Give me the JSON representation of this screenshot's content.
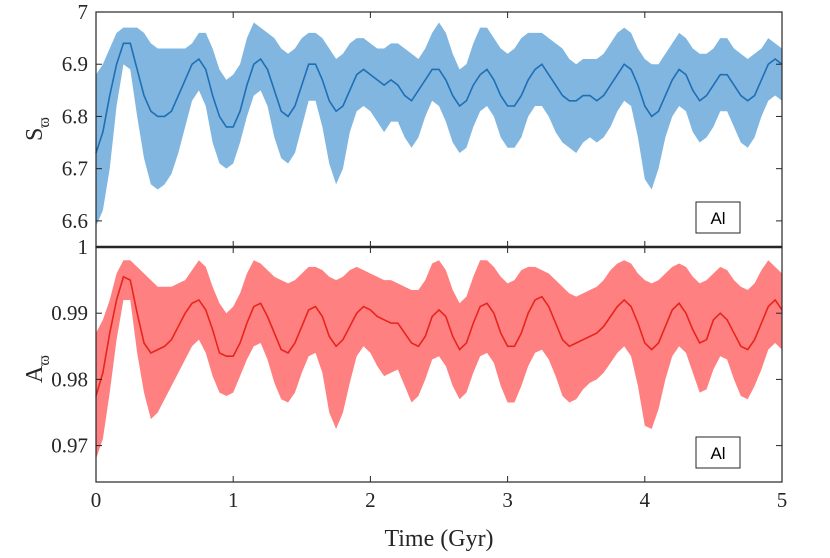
{
  "chart_data": [
    {
      "type": "area",
      "panel": "top",
      "ylabel": "S",
      "ylabel_subscript": "ϖ",
      "xlim": [
        0,
        5
      ],
      "ylim": [
        6.55,
        7.0
      ],
      "yticks": [
        6.6,
        6.7,
        6.8,
        6.9,
        7.0
      ],
      "ytick_labels": [
        "6.6",
        "6.7",
        "6.8",
        "6.9",
        "7"
      ],
      "legend": "Al",
      "legend_position": "bottom-right",
      "grid": false,
      "colors": {
        "band": "#80b6e0",
        "line": "#1f6fb5"
      },
      "x": [
        0.0,
        0.05,
        0.1,
        0.15,
        0.2,
        0.25,
        0.3,
        0.35,
        0.4,
        0.45,
        0.5,
        0.55,
        0.6,
        0.65,
        0.7,
        0.75,
        0.8,
        0.85,
        0.9,
        0.95,
        1.0,
        1.05,
        1.1,
        1.15,
        1.2,
        1.25,
        1.3,
        1.35,
        1.4,
        1.45,
        1.5,
        1.55,
        1.6,
        1.65,
        1.7,
        1.75,
        1.8,
        1.85,
        1.9,
        1.95,
        2.0,
        2.05,
        2.1,
        2.15,
        2.2,
        2.25,
        2.3,
        2.35,
        2.4,
        2.45,
        2.5,
        2.55,
        2.6,
        2.65,
        2.7,
        2.75,
        2.8,
        2.85,
        2.9,
        2.95,
        3.0,
        3.05,
        3.1,
        3.15,
        3.2,
        3.25,
        3.3,
        3.35,
        3.4,
        3.45,
        3.5,
        3.55,
        3.6,
        3.65,
        3.7,
        3.75,
        3.8,
        3.85,
        3.9,
        3.95,
        4.0,
        4.05,
        4.1,
        4.15,
        4.2,
        4.25,
        4.3,
        4.35,
        4.4,
        4.45,
        4.5,
        4.55,
        4.6,
        4.65,
        4.7,
        4.75,
        4.8,
        4.85,
        4.9,
        4.95,
        5.0
      ],
      "mean": [
        6.73,
        6.77,
        6.84,
        6.9,
        6.94,
        6.94,
        6.89,
        6.84,
        6.81,
        6.8,
        6.8,
        6.81,
        6.84,
        6.87,
        6.9,
        6.91,
        6.89,
        6.84,
        6.8,
        6.78,
        6.78,
        6.81,
        6.86,
        6.9,
        6.91,
        6.89,
        6.85,
        6.81,
        6.8,
        6.82,
        6.86,
        6.9,
        6.9,
        6.87,
        6.83,
        6.81,
        6.82,
        6.85,
        6.88,
        6.89,
        6.88,
        6.87,
        6.86,
        6.87,
        6.86,
        6.84,
        6.83,
        6.85,
        6.87,
        6.89,
        6.89,
        6.87,
        6.84,
        6.82,
        6.83,
        6.86,
        6.88,
        6.89,
        6.87,
        6.84,
        6.82,
        6.82,
        6.84,
        6.87,
        6.89,
        6.9,
        6.88,
        6.86,
        6.84,
        6.83,
        6.83,
        6.84,
        6.84,
        6.83,
        6.84,
        6.86,
        6.88,
        6.9,
        6.89,
        6.86,
        6.82,
        6.8,
        6.81,
        6.84,
        6.87,
        6.89,
        6.88,
        6.85,
        6.83,
        6.84,
        6.86,
        6.88,
        6.88,
        6.86,
        6.84,
        6.83,
        6.84,
        6.87,
        6.9,
        6.91,
        6.9
      ],
      "upper": [
        6.88,
        6.9,
        6.93,
        6.96,
        6.97,
        6.97,
        6.97,
        6.96,
        6.94,
        6.93,
        6.93,
        6.93,
        6.93,
        6.93,
        6.94,
        6.96,
        6.96,
        6.93,
        6.89,
        6.87,
        6.88,
        6.9,
        6.95,
        6.98,
        6.97,
        6.96,
        6.95,
        6.93,
        6.92,
        6.93,
        6.95,
        6.96,
        6.96,
        6.95,
        6.93,
        6.91,
        6.92,
        6.94,
        6.95,
        6.95,
        6.94,
        6.93,
        6.93,
        6.94,
        6.94,
        6.93,
        6.92,
        6.91,
        6.93,
        6.96,
        6.98,
        6.96,
        6.92,
        6.89,
        6.9,
        6.94,
        6.97,
        6.97,
        6.95,
        6.93,
        6.92,
        6.93,
        6.95,
        6.96,
        6.96,
        6.96,
        6.95,
        6.94,
        6.93,
        6.91,
        6.9,
        6.91,
        6.91,
        6.91,
        6.92,
        6.94,
        6.96,
        6.97,
        6.96,
        6.93,
        6.91,
        6.9,
        6.9,
        6.92,
        6.94,
        6.96,
        6.95,
        6.93,
        6.92,
        6.92,
        6.93,
        6.95,
        6.95,
        6.93,
        6.92,
        6.91,
        6.92,
        6.93,
        6.95,
        6.94,
        6.93
      ],
      "lower": [
        6.59,
        6.62,
        6.7,
        6.82,
        6.9,
        6.89,
        6.8,
        6.72,
        6.67,
        6.66,
        6.67,
        6.69,
        6.73,
        6.78,
        6.83,
        6.85,
        6.82,
        6.75,
        6.71,
        6.7,
        6.71,
        6.75,
        6.8,
        6.84,
        6.85,
        6.82,
        6.76,
        6.72,
        6.71,
        6.73,
        6.78,
        6.83,
        6.83,
        6.78,
        6.71,
        6.67,
        6.7,
        6.77,
        6.81,
        6.82,
        6.81,
        6.79,
        6.77,
        6.79,
        6.79,
        6.76,
        6.74,
        6.76,
        6.8,
        6.83,
        6.82,
        6.79,
        6.75,
        6.73,
        6.74,
        6.78,
        6.81,
        6.82,
        6.8,
        6.76,
        6.74,
        6.74,
        6.76,
        6.8,
        6.82,
        6.82,
        6.8,
        6.77,
        6.75,
        6.74,
        6.73,
        6.75,
        6.76,
        6.75,
        6.76,
        6.78,
        6.81,
        6.83,
        6.82,
        6.76,
        6.68,
        6.66,
        6.7,
        6.76,
        6.8,
        6.82,
        6.81,
        6.77,
        6.75,
        6.76,
        6.78,
        6.81,
        6.81,
        6.78,
        6.75,
        6.74,
        6.76,
        6.8,
        6.83,
        6.84,
        6.83
      ]
    },
    {
      "type": "area",
      "panel": "bottom",
      "ylabel": "A",
      "ylabel_subscript": "ϖ",
      "xlabel": "Time (Gyr)",
      "xlim": [
        0,
        5
      ],
      "ylim": [
        0.9645,
        1.0
      ],
      "yticks": [
        0.97,
        0.98,
        0.99,
        1.0
      ],
      "ytick_labels": [
        "0.97",
        "0.98",
        "0.99",
        "1"
      ],
      "xticks": [
        0,
        1,
        2,
        3,
        4,
        5
      ],
      "xtick_labels": [
        "0",
        "1",
        "2",
        "3",
        "4",
        "5"
      ],
      "legend": "Al",
      "legend_position": "bottom-right",
      "grid": false,
      "colors": {
        "band": "#ff8080",
        "line": "#e8241c"
      },
      "x": [
        0.0,
        0.05,
        0.1,
        0.15,
        0.2,
        0.25,
        0.3,
        0.35,
        0.4,
        0.45,
        0.5,
        0.55,
        0.6,
        0.65,
        0.7,
        0.75,
        0.8,
        0.85,
        0.9,
        0.95,
        1.0,
        1.05,
        1.1,
        1.15,
        1.2,
        1.25,
        1.3,
        1.35,
        1.4,
        1.45,
        1.5,
        1.55,
        1.6,
        1.65,
        1.7,
        1.75,
        1.8,
        1.85,
        1.9,
        1.95,
        2.0,
        2.05,
        2.1,
        2.15,
        2.2,
        2.25,
        2.3,
        2.35,
        2.4,
        2.45,
        2.5,
        2.55,
        2.6,
        2.65,
        2.7,
        2.75,
        2.8,
        2.85,
        2.9,
        2.95,
        3.0,
        3.05,
        3.1,
        3.15,
        3.2,
        3.25,
        3.3,
        3.35,
        3.4,
        3.45,
        3.5,
        3.55,
        3.6,
        3.65,
        3.7,
        3.75,
        3.8,
        3.85,
        3.9,
        3.95,
        4.0,
        4.05,
        4.1,
        4.15,
        4.2,
        4.25,
        4.3,
        4.35,
        4.4,
        4.45,
        4.5,
        4.55,
        4.6,
        4.65,
        4.7,
        4.75,
        4.8,
        4.85,
        4.9,
        4.95,
        5.0
      ],
      "mean": [
        0.9775,
        0.981,
        0.987,
        0.992,
        0.9955,
        0.995,
        0.99,
        0.9855,
        0.984,
        0.9845,
        0.985,
        0.986,
        0.988,
        0.99,
        0.9915,
        0.992,
        0.9905,
        0.9875,
        0.984,
        0.9835,
        0.9835,
        0.9855,
        0.9885,
        0.991,
        0.9915,
        0.9895,
        0.987,
        0.9845,
        0.984,
        0.9855,
        0.988,
        0.9905,
        0.991,
        0.9895,
        0.9865,
        0.985,
        0.986,
        0.988,
        0.99,
        0.991,
        0.9905,
        0.9895,
        0.989,
        0.9885,
        0.9885,
        0.987,
        0.9855,
        0.985,
        0.9865,
        0.9895,
        0.9905,
        0.9895,
        0.9865,
        0.9845,
        0.9855,
        0.9885,
        0.991,
        0.9915,
        0.99,
        0.987,
        0.985,
        0.985,
        0.987,
        0.99,
        0.992,
        0.9925,
        0.991,
        0.9885,
        0.986,
        0.985,
        0.9855,
        0.986,
        0.9865,
        0.987,
        0.988,
        0.9895,
        0.991,
        0.992,
        0.991,
        0.9885,
        0.9855,
        0.9845,
        0.9855,
        0.988,
        0.9905,
        0.9915,
        0.99,
        0.9875,
        0.9855,
        0.986,
        0.989,
        0.99,
        0.989,
        0.987,
        0.985,
        0.9845,
        0.986,
        0.9885,
        0.991,
        0.992,
        0.9905
      ],
      "upper": [
        0.987,
        0.989,
        0.992,
        0.996,
        0.998,
        0.998,
        0.997,
        0.996,
        0.995,
        0.994,
        0.994,
        0.994,
        0.9945,
        0.995,
        0.9965,
        0.998,
        0.997,
        0.994,
        0.9915,
        0.99,
        0.991,
        0.993,
        0.996,
        0.998,
        0.9975,
        0.9965,
        0.9955,
        0.995,
        0.9945,
        0.995,
        0.996,
        0.997,
        0.997,
        0.9965,
        0.9955,
        0.995,
        0.9955,
        0.9965,
        0.997,
        0.9965,
        0.996,
        0.9955,
        0.995,
        0.995,
        0.9945,
        0.994,
        0.9935,
        0.9935,
        0.995,
        0.9975,
        0.998,
        0.9965,
        0.9935,
        0.9915,
        0.9925,
        0.9955,
        0.998,
        0.998,
        0.997,
        0.9955,
        0.9945,
        0.995,
        0.9965,
        0.997,
        0.997,
        0.9965,
        0.996,
        0.995,
        0.994,
        0.993,
        0.9925,
        0.993,
        0.9935,
        0.994,
        0.995,
        0.9965,
        0.9975,
        0.998,
        0.9975,
        0.996,
        0.995,
        0.9945,
        0.995,
        0.996,
        0.997,
        0.9975,
        0.997,
        0.9955,
        0.9945,
        0.995,
        0.996,
        0.997,
        0.9965,
        0.995,
        0.994,
        0.9935,
        0.9945,
        0.9965,
        0.998,
        0.997,
        0.996
      ],
      "lower": [
        0.968,
        0.971,
        0.978,
        0.986,
        0.992,
        0.992,
        0.984,
        0.978,
        0.974,
        0.975,
        0.977,
        0.979,
        0.981,
        0.983,
        0.985,
        0.986,
        0.984,
        0.9805,
        0.978,
        0.9775,
        0.978,
        0.9805,
        0.983,
        0.985,
        0.9855,
        0.983,
        0.9795,
        0.977,
        0.9765,
        0.978,
        0.981,
        0.9835,
        0.984,
        0.981,
        0.975,
        0.9725,
        0.975,
        0.9795,
        0.9835,
        0.985,
        0.984,
        0.982,
        0.9805,
        0.981,
        0.9815,
        0.979,
        0.9765,
        0.9775,
        0.98,
        0.983,
        0.9835,
        0.982,
        0.979,
        0.977,
        0.978,
        0.981,
        0.9835,
        0.984,
        0.9825,
        0.979,
        0.9765,
        0.9765,
        0.979,
        0.982,
        0.984,
        0.9845,
        0.983,
        0.9805,
        0.9775,
        0.9765,
        0.977,
        0.9785,
        0.9795,
        0.98,
        0.981,
        0.9825,
        0.984,
        0.985,
        0.9835,
        0.979,
        0.973,
        0.9725,
        0.9755,
        0.98,
        0.9835,
        0.985,
        0.984,
        0.981,
        0.978,
        0.9785,
        0.9815,
        0.9835,
        0.983,
        0.98,
        0.9775,
        0.977,
        0.979,
        0.9815,
        0.9845,
        0.9855,
        0.9845
      ]
    }
  ]
}
